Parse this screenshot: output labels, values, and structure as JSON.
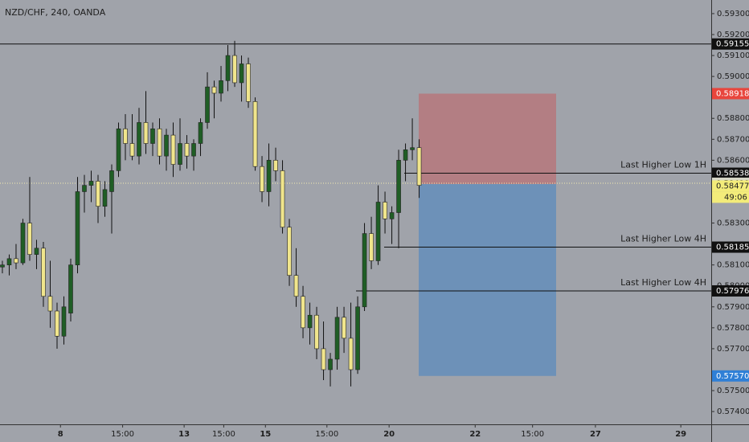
{
  "chart_data": {
    "type": "candlestick",
    "title": "NZD/CHF, 240, OANDA",
    "background": "#a0a3aa",
    "up_color": "#1f5e25",
    "down_color": "#f0e58c",
    "open": [
      0.5809,
      0.581,
      0.5813,
      0.5811,
      0.583,
      0.5815,
      0.5818,
      0.5795,
      0.5788,
      0.5776,
      0.5787,
      0.581,
      0.5845,
      0.5848,
      0.585,
      0.5838,
      0.5845,
      0.5855,
      0.5875,
      0.5868,
      0.5862,
      0.5878,
      0.5868,
      0.5875,
      0.5862,
      0.5872,
      0.5858,
      0.5868,
      0.5862,
      0.5868,
      0.5878,
      0.5895,
      0.5892,
      0.5898,
      0.591,
      0.5897,
      0.5906,
      0.5888,
      0.5857,
      0.5845,
      0.586,
      0.5855,
      0.5828,
      0.5805,
      0.5795,
      0.578,
      0.5786,
      0.577,
      0.576,
      0.5765,
      0.5785,
      0.5775,
      0.576,
      0.579,
      0.5825,
      0.5812,
      0.584,
      0.5832,
      0.5835,
      0.586,
      0.5865,
      0.5866
    ],
    "high": [
      0.5812,
      0.5815,
      0.582,
      0.5832,
      0.5852,
      0.5822,
      0.5821,
      0.5812,
      0.5792,
      0.5795,
      0.5813,
      0.5852,
      0.5853,
      0.5855,
      0.5853,
      0.585,
      0.5858,
      0.5878,
      0.5882,
      0.5882,
      0.5885,
      0.5893,
      0.5878,
      0.588,
      0.5875,
      0.5878,
      0.588,
      0.5872,
      0.587,
      0.588,
      0.5902,
      0.5898,
      0.5905,
      0.5915,
      0.5917,
      0.591,
      0.5909,
      0.589,
      0.5862,
      0.5868,
      0.5866,
      0.586,
      0.5832,
      0.5818,
      0.58,
      0.5792,
      0.579,
      0.5783,
      0.5768,
      0.579,
      0.579,
      0.5792,
      0.5795,
      0.583,
      0.5833,
      0.5848,
      0.5845,
      0.5838,
      0.5865,
      0.5868,
      0.588,
      0.587
    ],
    "low": [
      0.5806,
      0.5805,
      0.5808,
      0.581,
      0.5812,
      0.5808,
      0.579,
      0.578,
      0.577,
      0.5772,
      0.5783,
      0.5806,
      0.5835,
      0.584,
      0.583,
      0.5833,
      0.5825,
      0.5852,
      0.586,
      0.586,
      0.5858,
      0.5863,
      0.5862,
      0.5858,
      0.5855,
      0.5852,
      0.5855,
      0.5856,
      0.5855,
      0.5862,
      0.5875,
      0.588,
      0.5888,
      0.5893,
      0.5895,
      0.5888,
      0.5885,
      0.5855,
      0.584,
      0.5838,
      0.585,
      0.5825,
      0.58,
      0.579,
      0.5775,
      0.5772,
      0.5765,
      0.5755,
      0.5752,
      0.576,
      0.5768,
      0.5752,
      0.5758,
      0.5788,
      0.5808,
      0.581,
      0.5825,
      0.582,
      0.5818,
      0.585,
      0.586,
      0.5842
    ],
    "close": [
      0.581,
      0.5813,
      0.5811,
      0.583,
      0.5815,
      0.5818,
      0.5795,
      0.5788,
      0.5776,
      0.579,
      0.581,
      0.5845,
      0.5848,
      0.585,
      0.5838,
      0.5846,
      0.5855,
      0.5875,
      0.5868,
      0.5862,
      0.5878,
      0.5868,
      0.5875,
      0.5862,
      0.5872,
      0.5858,
      0.5868,
      0.5862,
      0.5868,
      0.5878,
      0.5895,
      0.5892,
      0.5898,
      0.591,
      0.5897,
      0.5906,
      0.5888,
      0.5857,
      0.5845,
      0.586,
      0.5855,
      0.5828,
      0.5805,
      0.5795,
      0.578,
      0.5786,
      0.577,
      0.576,
      0.5765,
      0.5785,
      0.5775,
      0.576,
      0.579,
      0.5825,
      0.5812,
      0.584,
      0.5832,
      0.5835,
      0.586,
      0.5865,
      0.5866,
      0.5848
    ],
    "xlim": [
      -0.35,
      103.75
    ],
    "xticks": [
      {
        "value": 8.5,
        "label": "8"
      },
      {
        "value": 17.6,
        "label": "15:00"
      },
      {
        "value": 26.6,
        "label": "13"
      },
      {
        "value": 32.4,
        "label": "15:00"
      },
      {
        "value": 38.5,
        "label": "15"
      },
      {
        "value": 47.5,
        "label": "15:00"
      },
      {
        "value": 56.6,
        "label": "20"
      },
      {
        "value": 69.2,
        "label": "22"
      },
      {
        "value": 77.6,
        "label": "15:00"
      },
      {
        "value": 86.8,
        "label": "27"
      },
      {
        "value": 99.3,
        "label": "29"
      }
    ],
    "ylim": [
      0.57339,
      0.59365
    ],
    "yticks": [
      {
        "value": 0.593,
        "label": "0.59300"
      },
      {
        "value": 0.592,
        "label": "0.59200"
      },
      {
        "value": 0.591,
        "label": "0.59100"
      },
      {
        "value": 0.59,
        "label": "0.59000"
      },
      {
        "value": 0.588,
        "label": "0.58800"
      },
      {
        "value": 0.587,
        "label": "0.58700"
      },
      {
        "value": 0.586,
        "label": "0.58600"
      },
      {
        "value": 0.583,
        "label": "0.58300"
      },
      {
        "value": 0.581,
        "label": "0.58100"
      },
      {
        "value": 0.58,
        "label": "0.58000"
      },
      {
        "value": 0.579,
        "label": "0.57900"
      },
      {
        "value": 0.578,
        "label": "0.57800"
      },
      {
        "value": 0.577,
        "label": "0.57700"
      },
      {
        "value": 0.575,
        "label": "0.57500"
      },
      {
        "value": 0.574,
        "label": "0.57400"
      }
    ],
    "levels": [
      {
        "value": 0.59155,
        "label": "0.59155"
      },
      {
        "value": 0.58538,
        "label": "0.58538",
        "text": "Last Higher Low 1H"
      },
      {
        "value": 0.58185,
        "label": "0.58185",
        "text": "Last Higher Low 4H"
      },
      {
        "value": 0.57976,
        "label": "0.57976",
        "text": "Last Higher Low 4H"
      }
    ],
    "position": {
      "stop": {
        "value": 0.58918,
        "label": "0.58918"
      },
      "entry": 0.58486,
      "target": {
        "value": 0.5757,
        "label": "0.57570"
      }
    },
    "last_line": {
      "value": 0.5849,
      "label": "0.58490"
    },
    "current": {
      "value": 0.58477,
      "label": "0.58477",
      "countdown": "49:06"
    }
  }
}
